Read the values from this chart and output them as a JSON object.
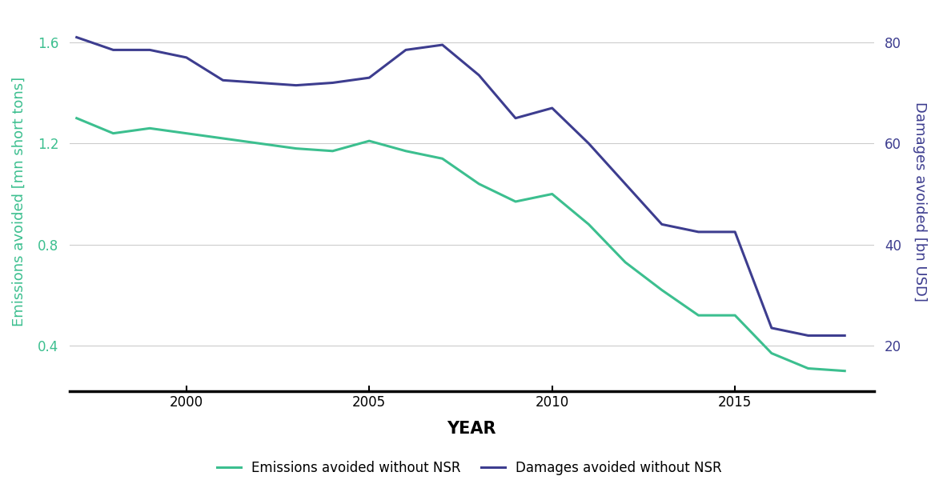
{
  "years": [
    1997,
    1998,
    1999,
    2000,
    2001,
    2002,
    2003,
    2004,
    2005,
    2006,
    2007,
    2008,
    2009,
    2010,
    2011,
    2012,
    2013,
    2014,
    2015,
    2016,
    2017,
    2018
  ],
  "emissions": [
    1.3,
    1.24,
    1.26,
    1.24,
    1.22,
    1.2,
    1.18,
    1.17,
    1.21,
    1.17,
    1.14,
    1.04,
    0.97,
    1.0,
    0.88,
    0.73,
    0.62,
    0.52,
    0.52,
    0.37,
    0.31,
    0.3
  ],
  "damages": [
    81.0,
    78.5,
    78.5,
    77.0,
    72.5,
    72.0,
    71.5,
    72.0,
    73.0,
    78.5,
    79.5,
    73.5,
    65.0,
    67.0,
    60.0,
    52.0,
    44.0,
    42.5,
    42.5,
    23.5,
    22.0,
    22.0
  ],
  "emissions_color": "#3cbf8f",
  "damages_color": "#3d3d8f",
  "left_ylabel": "Emissions avoided [mn short tons]",
  "right_ylabel": "Damages avoided [bn USD]",
  "xlabel": "YEAR",
  "left_ylim": [
    0.22,
    1.72
  ],
  "right_ylim": [
    11,
    86
  ],
  "left_yticks": [
    0.4,
    0.8,
    1.2,
    1.6
  ],
  "right_yticks": [
    20,
    40,
    60,
    80
  ],
  "xtick_positions": [
    2000,
    2005,
    2010,
    2015
  ],
  "xtick_labels": [
    "2000",
    "2005",
    "2010",
    "2015"
  ],
  "xlim": [
    1996.8,
    2018.8
  ],
  "legend_emissions": "Emissions avoided without NSR",
  "legend_damages": "Damages avoided without NSR",
  "background_color": "#ffffff",
  "grid_color": "#cccccc",
  "line_width": 2.2
}
